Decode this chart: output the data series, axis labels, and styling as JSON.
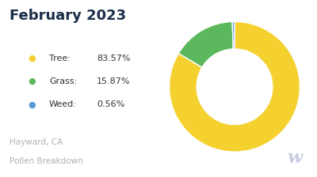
{
  "title": "February 2023",
  "title_color": "#1a2e4a",
  "title_fontsize": 13,
  "title_fontweight": "bold",
  "subtitle_line1": "Hayward, CA",
  "subtitle_line2": "Pollen Breakdown",
  "subtitle_color": "#b0b0b0",
  "subtitle_fontsize": 7.5,
  "legend_labels": [
    "Tree",
    "Grass",
    "Weed"
  ],
  "legend_values": [
    "83.57%",
    "15.87%",
    "0.56%"
  ],
  "slices": [
    83.57,
    15.87,
    0.56
  ],
  "colors": [
    "#f5d130",
    "#5cb85c",
    "#5b9bd5"
  ],
  "background_color": "#ffffff",
  "donut_width": 0.42,
  "startangle": 90
}
